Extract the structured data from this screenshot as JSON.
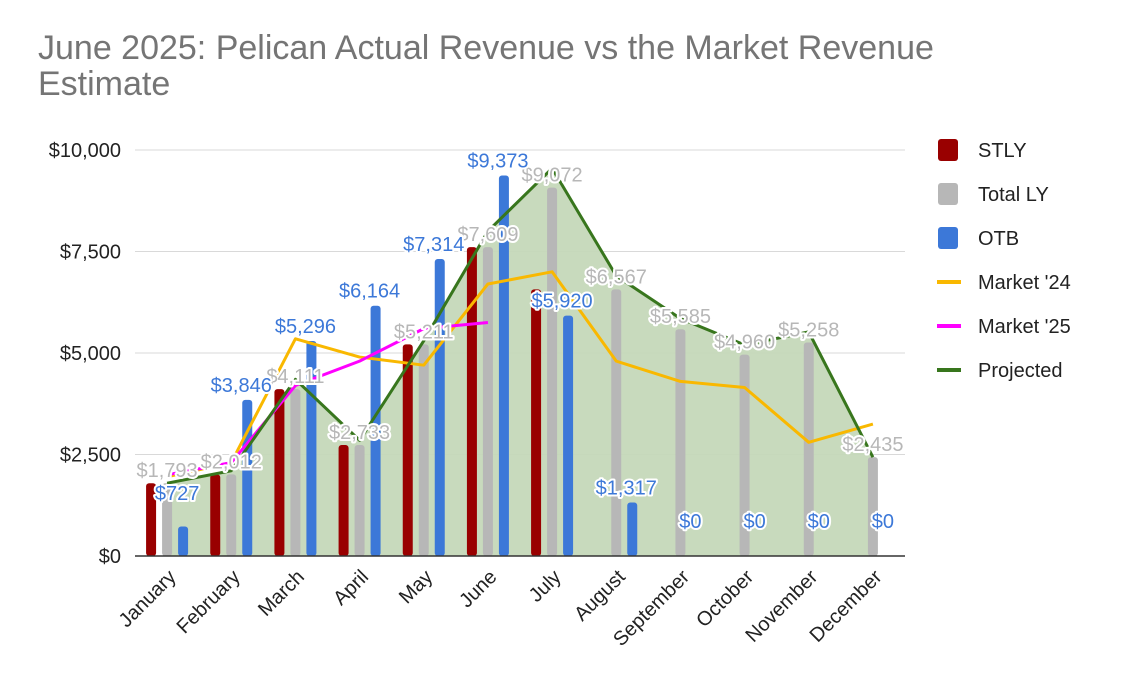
{
  "chart_data": {
    "type": "bar",
    "title": "June 2025: Pelican Actual Revenue vs the Market Revenue Estimate",
    "categories": [
      "January",
      "February",
      "March",
      "April",
      "May",
      "June",
      "July",
      "August",
      "September",
      "October",
      "November",
      "December"
    ],
    "y_ticks": [
      "$0",
      "$2,500",
      "$5,000",
      "$7,500",
      "$10,000"
    ],
    "ylim": [
      0,
      10000
    ],
    "legend_position": "right",
    "series": [
      {
        "name": "STLY",
        "kind": "bar",
        "color": "#990000",
        "values": [
          1793,
          2012,
          4111,
          2733,
          5211,
          7609,
          6567,
          0,
          0,
          0,
          0,
          0
        ]
      },
      {
        "name": "Total LY",
        "kind": "bar",
        "color": "#b7b7b7",
        "values": [
          1793,
          2012,
          4111,
          2733,
          5211,
          7609,
          9072,
          6567,
          5585,
          4960,
          5258,
          2435
        ]
      },
      {
        "name": "OTB",
        "kind": "bar",
        "color": "#3c78d8",
        "values": [
          727,
          3846,
          5296,
          6164,
          7314,
          9373,
          5920,
          1317,
          0,
          0,
          0,
          0
        ]
      },
      {
        "name": "Market '24",
        "kind": "line",
        "color": "#f9b800",
        "values": [
          1950,
          2300,
          5350,
          4900,
          4700,
          6700,
          7000,
          4800,
          4300,
          4150,
          2800,
          3250
        ]
      },
      {
        "name": "Market '25",
        "kind": "line",
        "color": "#ff00ff",
        "values": [
          2000,
          2300,
          4200,
          4800,
          5600,
          5750,
          null,
          null,
          null,
          null,
          null,
          null
        ]
      },
      {
        "name": "Projected",
        "kind": "area",
        "color": "#38761d",
        "fill": "#c5d8b9",
        "values": [
          1793,
          2100,
          4350,
          2850,
          5300,
          8000,
          9550,
          6900,
          5850,
          5200,
          5520,
          2435
        ]
      }
    ],
    "data_labels": {
      "Total LY": [
        "$1,793",
        "$2,012",
        "$4,111",
        "$2,733",
        "$5,211",
        "$7,609",
        "$9,072",
        "$6,567",
        "$5,585",
        "$4,960",
        "$5,258",
        "$2,435"
      ],
      "OTB": [
        "$727",
        "$3,846",
        "$5,296",
        "$6,164",
        "$7,314",
        "$9,373",
        "$5,920",
        "$1,317",
        "$0",
        "$0",
        "$0",
        "$0"
      ]
    }
  }
}
